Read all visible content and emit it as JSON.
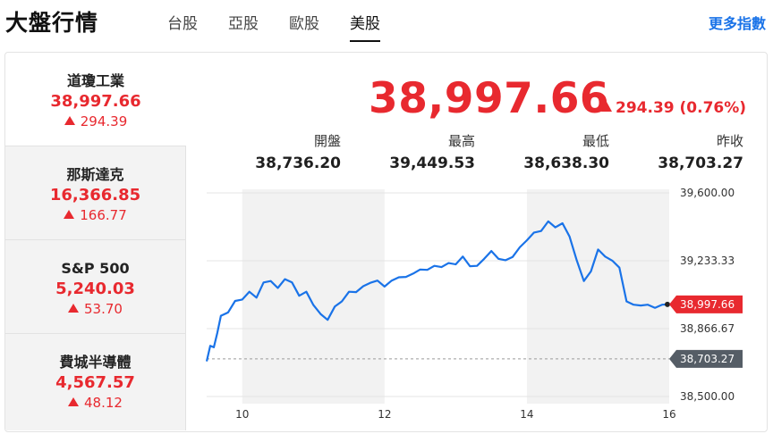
{
  "header": {
    "title": "大盤行情",
    "tabs": [
      {
        "label": "台股",
        "active": false
      },
      {
        "label": "亞股",
        "active": false
      },
      {
        "label": "歐股",
        "active": false
      },
      {
        "label": "美股",
        "active": true
      }
    ],
    "more_link": "更多指數"
  },
  "sidebar": {
    "items": [
      {
        "name": "道瓊工業",
        "price": "38,997.66",
        "change": "294.39"
      },
      {
        "name": "那斯達克",
        "price": "16,366.85",
        "change": "166.77"
      },
      {
        "name": "S&P 500",
        "price": "5,240.03",
        "change": "53.70"
      },
      {
        "name": "費城半導體",
        "price": "4,567.57",
        "change": "48.12"
      }
    ]
  },
  "main": {
    "price": "38,997.66",
    "change": "294.39 (0.76%)",
    "stats": [
      {
        "label": "開盤",
        "value": "38,736.20"
      },
      {
        "label": "最高",
        "value": "39,449.53"
      },
      {
        "label": "最低",
        "value": "38,638.30"
      },
      {
        "label": "昨收",
        "value": "38,703.27"
      }
    ]
  },
  "colors": {
    "up": "#e8292f",
    "line": "#1a73e8",
    "prev_close_badge": "#555d66"
  },
  "chart_data": {
    "type": "line",
    "x_ticks": [
      "10",
      "12",
      "14",
      "16"
    ],
    "y_ticks": [
      "39,600.00",
      "39,233.33",
      "38,866.67",
      "38,500.00"
    ],
    "ylim": [
      38500,
      39600
    ],
    "last_label": "38,997.66",
    "prev_close_label": "38,703.27",
    "prev_close": 38703.27,
    "last": 38997.66,
    "series": [
      {
        "x": [
          9.5,
          9.55,
          9.6,
          9.65,
          9.7,
          9.8,
          9.9,
          10.0,
          10.1,
          10.2,
          10.3,
          10.4,
          10.5,
          10.6,
          10.7,
          10.8,
          10.9,
          11.0,
          11.1,
          11.2,
          11.3,
          11.4,
          11.5,
          11.6,
          11.7,
          11.8,
          11.9,
          12.0,
          12.1,
          12.2,
          12.3,
          12.4,
          12.5,
          12.6,
          12.7,
          12.8,
          12.9,
          13.0,
          13.1,
          13.2,
          13.3,
          13.4,
          13.5,
          13.6,
          13.7,
          13.8,
          13.9,
          14.0,
          14.1,
          14.2,
          14.3,
          14.4,
          14.5,
          14.6,
          14.7,
          14.8,
          14.9,
          15.0,
          15.1,
          15.2,
          15.3,
          15.4,
          15.5,
          15.6,
          15.7,
          15.8,
          15.9,
          16.0
        ],
        "y": [
          38690,
          38780,
          38760,
          38850,
          38930,
          38960,
          39010,
          39030,
          39060,
          39040,
          39110,
          39130,
          39080,
          39140,
          39110,
          39050,
          39060,
          39000,
          38940,
          38920,
          38980,
          39020,
          39060,
          39070,
          39090,
          39120,
          39120,
          39100,
          39120,
          39150,
          39140,
          39170,
          39180,
          39190,
          39200,
          39205,
          39215,
          39220,
          39250,
          39210,
          39200,
          39250,
          39280,
          39250,
          39230,
          39260,
          39300,
          39350,
          39380,
          39400,
          39440,
          39420,
          39430,
          39370,
          39230,
          39130,
          39170,
          39300,
          39250,
          39240,
          39190,
          39020,
          38990,
          38997.66,
          38990,
          38985,
          38990,
          38997.66
        ]
      }
    ]
  }
}
